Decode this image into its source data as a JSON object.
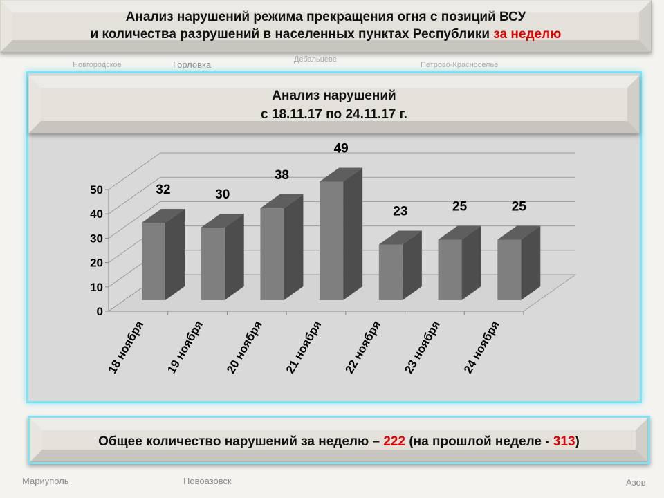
{
  "title": {
    "line1": "Анализ нарушений режима прекращения огня с позиций ВСУ",
    "line2": "и количества разрушений в населенных пунктах Республики ",
    "line2_highlight": "за неделю"
  },
  "panel": {
    "title": "Анализ нарушений",
    "period": "с 18.11.17 по 24.11.17 г."
  },
  "chart_data": {
    "type": "bar",
    "style": "3d-column",
    "categories": [
      "18 ноября",
      "19 ноября",
      "20 ноября",
      "21 ноября",
      "22 ноября",
      "23 ноября",
      "24 ноября"
    ],
    "values": [
      32,
      30,
      38,
      49,
      23,
      25,
      25
    ],
    "ylim": [
      0,
      50
    ],
    "yticks": [
      0,
      10,
      20,
      30,
      40,
      50
    ],
    "grid": true,
    "xlabel": "",
    "ylabel": "",
    "bar_color": "#7f7f7f"
  },
  "summary": {
    "text": "Общее количество нарушений за неделю – ",
    "total": "222",
    "mid": " (на прошлой неделе - ",
    "previous": "313",
    "end": ")"
  },
  "map_labels": [
    "Новгородское",
    "Горловка",
    "Дебальцеве",
    "Петрово-Красноселье",
    "Мариуполь",
    "Новоазовск",
    "Азов"
  ]
}
